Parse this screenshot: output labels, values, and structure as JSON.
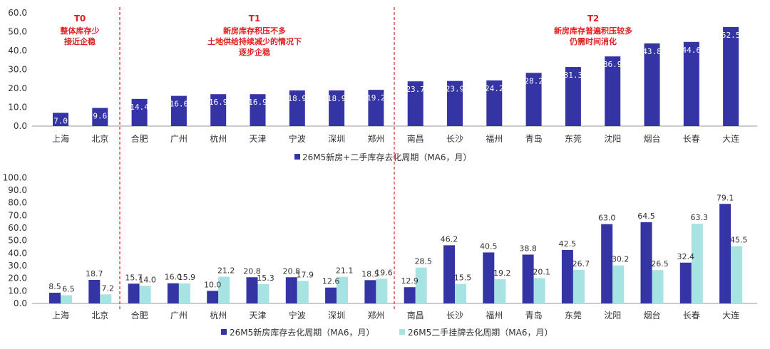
{
  "colors": {
    "new_house": "#3434a4",
    "second_hand": "#a8e3e3",
    "divider": "#e02020",
    "axis": "#999999"
  },
  "chart_data": [
    {
      "type": "bar",
      "categories": [
        "上海",
        "北京",
        "合肥",
        "广州",
        "杭州",
        "天津",
        "宁波",
        "深圳",
        "郑州",
        "南昌",
        "长沙",
        "福州",
        "青岛",
        "东莞",
        "沈阳",
        "烟台",
        "长春",
        "大连"
      ],
      "series": [
        {
          "name": "26M5新房+二手库存去化周期（MA6，月）",
          "values": [
            7.0,
            9.6,
            14.4,
            16.0,
            16.9,
            16.9,
            18.9,
            18.9,
            19.2,
            23.7,
            23.9,
            24.2,
            28.2,
            31.3,
            36.9,
            43.8,
            44.6,
            52.5
          ]
        }
      ],
      "yticks": [
        "0.0",
        "10.0",
        "20.0",
        "30.0",
        "40.0",
        "50.0",
        "60.0"
      ],
      "ylim": [
        0,
        60
      ],
      "legend_position": "bottom"
    },
    {
      "type": "bar",
      "categories": [
        "上海",
        "北京",
        "合肥",
        "广州",
        "杭州",
        "天津",
        "宁波",
        "深圳",
        "郑州",
        "南昌",
        "长沙",
        "福州",
        "青岛",
        "东莞",
        "沈阳",
        "烟台",
        "长春",
        "大连"
      ],
      "series": [
        {
          "name": "26M5新房库存去化周期（MA6，月）",
          "values": [
            8.5,
            18.7,
            15.7,
            16.0,
            10.0,
            20.8,
            20.8,
            12.6,
            18.5,
            12.9,
            46.2,
            40.5,
            38.8,
            42.5,
            63.0,
            64.5,
            32.4,
            79.1
          ]
        },
        {
          "name": "26M5二手挂牌去化周期（MA6，月）",
          "values": [
            6.5,
            7.2,
            14.0,
            15.9,
            21.2,
            15.3,
            17.9,
            21.1,
            19.6,
            28.5,
            15.5,
            19.2,
            20.1,
            26.7,
            30.2,
            26.5,
            63.3,
            45.5
          ]
        }
      ],
      "yticks": [
        "0.0",
        "10.0",
        "20.0",
        "30.0",
        "40.0",
        "50.0",
        "60.0",
        "70.0",
        "80.0",
        "90.0",
        "100.0"
      ],
      "ylim": [
        0,
        100
      ],
      "legend_position": "bottom"
    }
  ],
  "tiers": [
    {
      "title": "T0",
      "lines": [
        "整体库存少",
        "接近企稳"
      ]
    },
    {
      "title": "T1",
      "lines": [
        "新房库存积压不多",
        "土地供给持续减少的情况下",
        "逐步企稳"
      ]
    },
    {
      "title": "T2",
      "lines": [
        "新房库存普遍积压较多",
        "仍需时间消化"
      ]
    }
  ]
}
